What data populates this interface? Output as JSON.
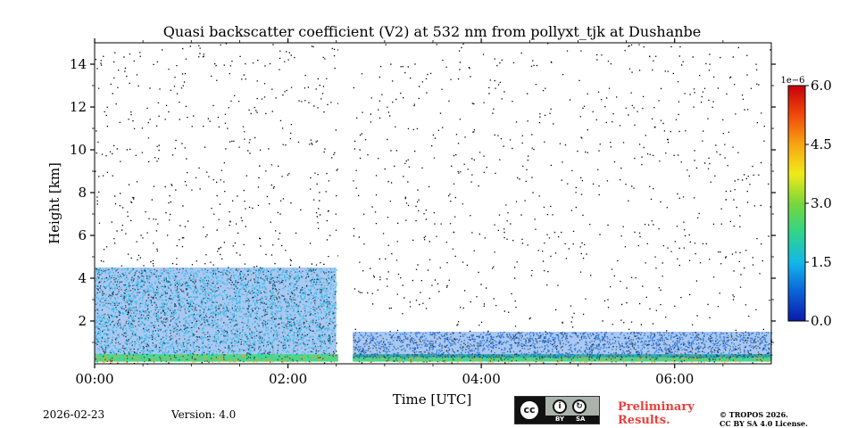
{
  "chart_data": {
    "type": "heatmap",
    "title": "Quasi backscatter coefficient (V2) at 532 nm from pollyxt_tjk at Dushanbe",
    "xlabel": "Time [UTC]",
    "ylabel": "Height [km]",
    "xlim_hours": [
      0,
      7
    ],
    "ylim_km": [
      0,
      15
    ],
    "x_ticks": [
      {
        "value": 0,
        "label": "00:00"
      },
      {
        "value": 2,
        "label": "02:00"
      },
      {
        "value": 4,
        "label": "04:00"
      },
      {
        "value": 6,
        "label": "06:00"
      }
    ],
    "y_ticks": [
      {
        "value": 2,
        "label": "2"
      },
      {
        "value": 4,
        "label": "4"
      },
      {
        "value": 6,
        "label": "6"
      },
      {
        "value": 8,
        "label": "8"
      },
      {
        "value": 10,
        "label": "10"
      },
      {
        "value": 12,
        "label": "12"
      },
      {
        "value": 14,
        "label": "14"
      }
    ],
    "data_gap_hours": [
      2.52,
      2.67
    ],
    "colorbar": {
      "range": [
        0.0,
        6.0
      ],
      "multiplier": "1e−6",
      "ticks": [
        {
          "value": 0.0,
          "label": "0.0"
        },
        {
          "value": 1.5,
          "label": "1.5"
        },
        {
          "value": 3.0,
          "label": "3.0"
        },
        {
          "value": 4.5,
          "label": "4.5"
        },
        {
          "value": 6.0,
          "label": "6.0"
        }
      ],
      "colormap": [
        "#0a1aa8",
        "#0b62d8",
        "#12b8e8",
        "#2fd48a",
        "#7ad63a",
        "#f0ea1a",
        "#f7a512",
        "#f04a0a",
        "#c8000c"
      ]
    },
    "layers": [
      {
        "name": "surface-aerosol-layer",
        "t_start": 0,
        "t_end": 7,
        "h_bottom_km": 0.1,
        "h_top_km": 0.45,
        "value": 2.6
      },
      {
        "name": "boundary-layer-morning",
        "t_start": 0,
        "t_end": 2.5,
        "h_bottom_km": 0.45,
        "h_top_km": 4.5,
        "value": 0.8
      },
      {
        "name": "boundary-layer-later",
        "t_start": 2.67,
        "t_end": 7,
        "h_bottom_km": 0.3,
        "h_top_km": 1.5,
        "value": 0.4
      }
    ]
  },
  "footer": {
    "date": "2026-02-23",
    "version": "Version: 4.0",
    "license_badge": {
      "cc": "cc",
      "by": "BY",
      "sa": "SA"
    },
    "preliminary_line1": "Preliminary",
    "preliminary_line2": "Results.",
    "copyright_line1": "© TROPOS 2026.",
    "copyright_line2": "CC BY SA 4.0 License."
  }
}
